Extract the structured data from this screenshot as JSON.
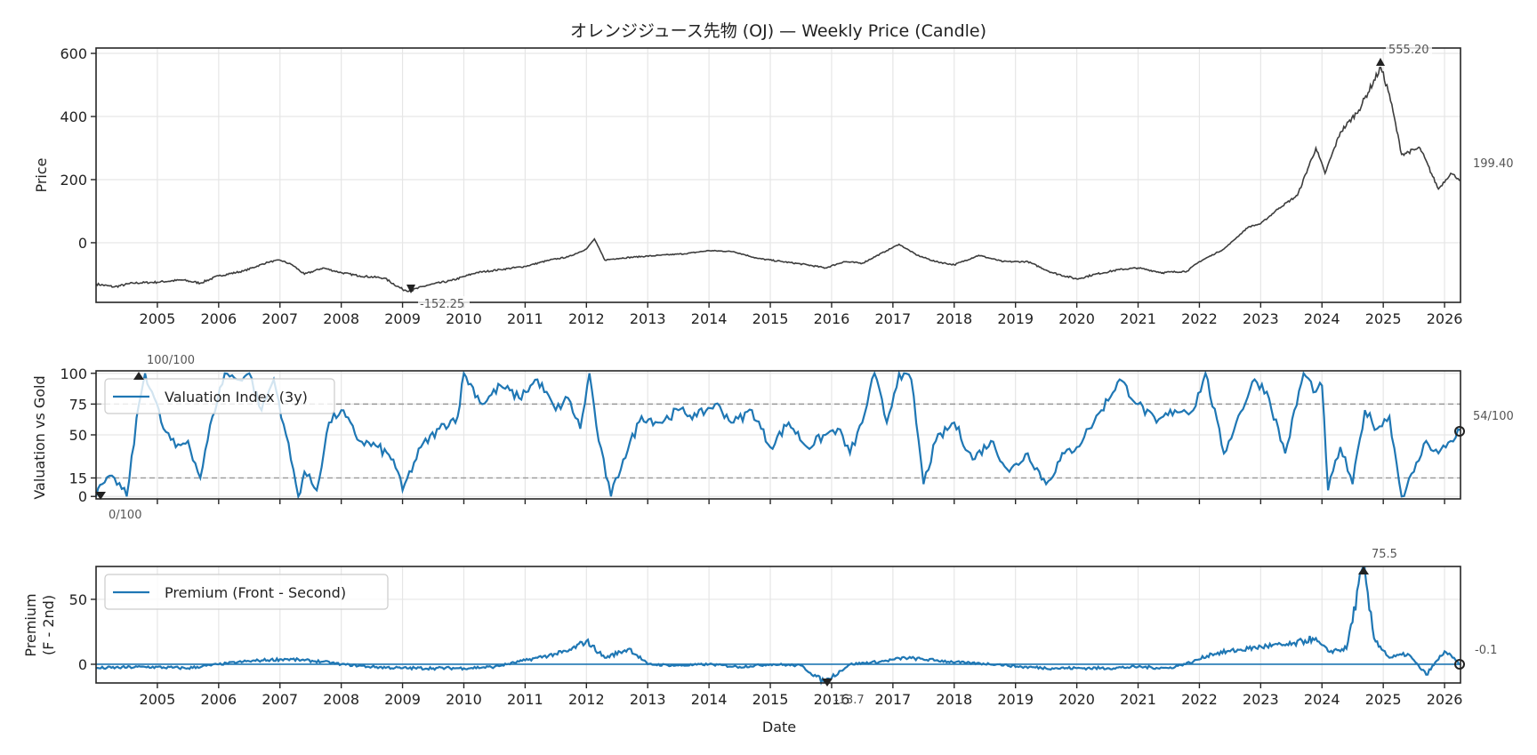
{
  "chart_data": [
    {
      "type": "line",
      "panel": "price",
      "title": "オレンジジュース先物 (OJ) — Weekly Price (Candle)",
      "xlabel": "",
      "ylabel": "Price",
      "xlim": [
        2004.0,
        2026.26
      ],
      "ylim": [
        -189,
        617
      ],
      "yticks": [
        0,
        200,
        400,
        600
      ],
      "ytick_labels": [
        "0",
        "200",
        "400",
        "600"
      ],
      "xticks": [
        2005,
        2006,
        2007,
        2008,
        2009,
        2010,
        2011,
        2012,
        2013,
        2014,
        2015,
        2016,
        2017,
        2018,
        2019,
        2020,
        2021,
        2022,
        2023,
        2024,
        2025,
        2026
      ],
      "xtick_labels": [
        "2005",
        "2006",
        "2007",
        "2008",
        "2009",
        "2010",
        "2011",
        "2012",
        "2013",
        "2014",
        "2015",
        "2016",
        "2017",
        "2018",
        "2019",
        "2020",
        "2021",
        "2022",
        "2023",
        "2024",
        "2025",
        "2026"
      ],
      "grid": true,
      "color": "#3d3d3d",
      "x": [
        2004.0,
        2004.3,
        2004.6,
        2005.0,
        2005.4,
        2005.7,
        2006.0,
        2006.4,
        2006.8,
        2007.0,
        2007.2,
        2007.4,
        2007.7,
        2008.0,
        2008.3,
        2008.7,
        2009.0,
        2009.13,
        2009.4,
        2009.8,
        2010.2,
        2010.6,
        2011.0,
        2011.4,
        2011.7,
        2012.0,
        2012.13,
        2012.3,
        2012.5,
        2012.8,
        2013.2,
        2013.6,
        2014.0,
        2014.4,
        2014.8,
        2015.2,
        2015.6,
        2015.9,
        2016.2,
        2016.5,
        2016.9,
        2017.1,
        2017.4,
        2017.7,
        2018.0,
        2018.4,
        2018.8,
        2019.2,
        2019.6,
        2020.0,
        2020.3,
        2020.7,
        2021.0,
        2021.4,
        2021.8,
        2022.0,
        2022.4,
        2022.8,
        2023.0,
        2023.3,
        2023.6,
        2023.9,
        2024.05,
        2024.3,
        2024.6,
        2024.96,
        2025.1,
        2025.3,
        2025.6,
        2025.9,
        2026.1,
        2026.26
      ],
      "values": [
        -131,
        -140,
        -128,
        -125,
        -118,
        -128,
        -105,
        -90,
        -62,
        -55,
        -70,
        -100,
        -80,
        -95,
        -105,
        -112,
        -148,
        -152.25,
        -135,
        -120,
        -95,
        -85,
        -75,
        -55,
        -45,
        -20,
        12,
        -55,
        -50,
        -45,
        -40,
        -35,
        -25,
        -28,
        -50,
        -60,
        -70,
        -80,
        -60,
        -65,
        -25,
        -5,
        -40,
        -60,
        -70,
        -40,
        -60,
        -60,
        -95,
        -115,
        -100,
        -85,
        -80,
        -95,
        -90,
        -60,
        -20,
        50,
        60,
        110,
        150,
        300,
        220,
        350,
        420,
        555.2,
        470,
        280,
        300,
        170,
        220,
        199.4
      ],
      "annotations": {
        "max_label": "555.20",
        "min_label": "-152.25",
        "last_label": "199.40"
      }
    },
    {
      "type": "line",
      "panel": "valuation",
      "ylabel": "Valuation vs Gold",
      "xlim": [
        2004.0,
        2026.26
      ],
      "ylim": [
        -2,
        102
      ],
      "yticks": [
        0,
        15,
        50,
        75,
        100
      ],
      "ytick_labels": [
        "0",
        "15",
        "50",
        "75",
        "100"
      ],
      "hlines": [
        15,
        75
      ],
      "grid": true,
      "color": "#1f77b4",
      "legend": {
        "label": "Valuation Index (3y)",
        "placement": "upper-left"
      },
      "x": [
        2004.0,
        2004.1,
        2004.3,
        2004.5,
        2004.7,
        2004.8,
        2004.95,
        2005.1,
        2005.3,
        2005.5,
        2005.7,
        2005.9,
        2006.1,
        2006.3,
        2006.5,
        2006.7,
        2006.9,
        2007.1,
        2007.3,
        2007.4,
        2007.6,
        2007.8,
        2008.0,
        2008.3,
        2008.6,
        2008.85,
        2009.0,
        2009.3,
        2009.6,
        2009.9,
        2010.0,
        2010.3,
        2010.6,
        2010.9,
        2011.2,
        2011.5,
        2011.7,
        2011.9,
        2012.05,
        2012.2,
        2012.4,
        2012.6,
        2012.9,
        2013.2,
        2013.5,
        2013.8,
        2014.1,
        2014.4,
        2014.7,
        2015.0,
        2015.3,
        2015.6,
        2015.9,
        2016.1,
        2016.3,
        2016.5,
        2016.7,
        2016.9,
        2017.1,
        2017.3,
        2017.5,
        2017.7,
        2018.0,
        2018.3,
        2018.6,
        2018.9,
        2019.2,
        2019.5,
        2019.8,
        2020.0,
        2020.2,
        2020.4,
        2020.7,
        2021.0,
        2021.3,
        2021.6,
        2021.9,
        2022.1,
        2022.4,
        2022.6,
        2022.9,
        2023.1,
        2023.4,
        2023.7,
        2023.9,
        2024.0,
        2024.1,
        2024.3,
        2024.5,
        2024.7,
        2024.9,
        2025.1,
        2025.3,
        2025.5,
        2025.7,
        2025.9,
        2026.1,
        2026.26
      ],
      "values": [
        0,
        10,
        15,
        0,
        75,
        100,
        80,
        55,
        40,
        45,
        15,
        65,
        100,
        95,
        100,
        70,
        95,
        50,
        0,
        20,
        5,
        60,
        70,
        45,
        40,
        30,
        5,
        40,
        55,
        65,
        100,
        75,
        90,
        80,
        95,
        70,
        80,
        55,
        100,
        45,
        0,
        30,
        65,
        60,
        70,
        65,
        75,
        60,
        70,
        40,
        60,
        40,
        50,
        55,
        35,
        60,
        100,
        60,
        100,
        95,
        10,
        45,
        60,
        30,
        45,
        20,
        35,
        10,
        35,
        40,
        55,
        70,
        95,
        75,
        60,
        70,
        70,
        100,
        35,
        60,
        95,
        85,
        35,
        100,
        85,
        90,
        5,
        40,
        10,
        70,
        55,
        65,
        0,
        20,
        45,
        35,
        45,
        54
      ],
      "annotations": {
        "max_label": "100/100",
        "min_label": "0/100",
        "last_label": "54/100"
      }
    },
    {
      "type": "line",
      "panel": "premium",
      "xlabel": "Date",
      "ylabel": "Premium\n(F - 2nd)",
      "xlim": [
        2004.0,
        2026.26
      ],
      "ylim": [
        -14.4,
        75.3
      ],
      "yticks": [
        0,
        50
      ],
      "ytick_labels": [
        "0",
        "50"
      ],
      "hlines": [
        0
      ],
      "grid": true,
      "color": "#1f77b4",
      "legend": {
        "label": "Premium (Front - Second)",
        "placement": "upper-left"
      },
      "x": [
        2004.0,
        2004.8,
        2005.5,
        2006.0,
        2006.4,
        2006.7,
        2007.1,
        2007.4,
        2007.7,
        2008.0,
        2008.5,
        2009.0,
        2009.5,
        2010.0,
        2010.5,
        2011.0,
        2011.2,
        2011.5,
        2011.7,
        2012.0,
        2012.3,
        2012.7,
        2013.0,
        2013.5,
        2014.0,
        2014.5,
        2015.0,
        2015.5,
        2015.88,
        2016.3,
        2016.8,
        2017.2,
        2017.7,
        2018.2,
        2018.7,
        2019.1,
        2019.6,
        2020.0,
        2020.5,
        2021.0,
        2021.5,
        2021.9,
        2022.2,
        2022.5,
        2022.8,
        2023.1,
        2023.5,
        2023.85,
        2024.1,
        2024.4,
        2024.67,
        2024.85,
        2025.1,
        2025.4,
        2025.7,
        2026.0,
        2026.26
      ],
      "values": [
        -3,
        -2,
        -3,
        0,
        2,
        3,
        4,
        3,
        2,
        0,
        -2,
        -3,
        -3,
        -3,
        -2,
        3,
        5,
        8,
        10,
        18,
        5,
        12,
        0,
        -1,
        0,
        -2,
        0,
        -1,
        -13.7,
        0,
        2,
        5,
        3,
        1,
        0,
        -2,
        -3,
        -3,
        -3,
        -2,
        -3,
        2,
        8,
        10,
        12,
        14,
        15,
        20,
        10,
        12,
        75.5,
        20,
        5,
        8,
        -8,
        10,
        -0.1
      ],
      "annotations": {
        "max_label": "75.5",
        "min_label": "-13.7",
        "last_label": "-0.1"
      }
    }
  ]
}
